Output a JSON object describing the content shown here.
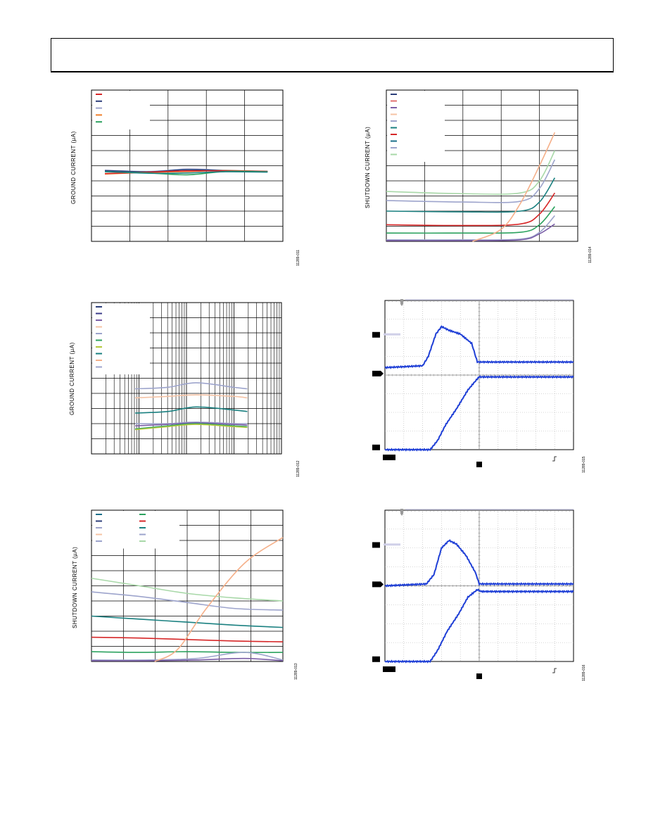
{
  "chart_data": [
    {
      "id": "plot-1",
      "type": "line",
      "ylabel": "GROUND CURRENT (µA)",
      "figure_id": "11289-011",
      "grid": {
        "cols": 5,
        "rows": 10
      },
      "xlim": [
        0,
        1
      ],
      "ylim": [
        0,
        1
      ],
      "legend_colors": [
        "#d62728",
        "#2c3e7a",
        "#9da4cc",
        "#f07f2a",
        "#2ca25f"
      ],
      "series": [
        {
          "color": "#9da4cc",
          "x": [
            0.07,
            0.3,
            0.5,
            0.7,
            0.92
          ],
          "y": [
            0.47,
            0.462,
            0.478,
            0.47,
            0.464
          ]
        },
        {
          "color": "#2c3e7a",
          "x": [
            0.07,
            0.3,
            0.5,
            0.7,
            0.92
          ],
          "y": [
            0.468,
            0.46,
            0.474,
            0.468,
            0.462
          ]
        },
        {
          "color": "#f07f2a",
          "x": [
            0.07,
            0.3,
            0.5,
            0.7,
            0.92
          ],
          "y": [
            0.445,
            0.456,
            0.462,
            0.468,
            0.462
          ]
        },
        {
          "color": "#d62728",
          "x": [
            0.07,
            0.3,
            0.5,
            0.7,
            0.92
          ],
          "y": [
            0.448,
            0.458,
            0.466,
            0.466,
            0.462
          ]
        },
        {
          "color": "#2ca25f",
          "x": [
            0.07,
            0.3,
            0.5,
            0.7,
            0.92
          ],
          "y": [
            0.46,
            0.452,
            0.44,
            0.462,
            0.46
          ]
        },
        {
          "color": "#1a8080",
          "x": [
            0.07,
            0.3,
            0.5,
            0.7,
            0.92
          ],
          "y": [
            0.462,
            0.45,
            0.452,
            0.46,
            0.458
          ]
        }
      ]
    },
    {
      "id": "plot-2",
      "type": "line",
      "ylabel": "SHUTDOWN CURRENT (µA)",
      "figure_id": "11289-014",
      "grid": {
        "cols": 5,
        "rows": 10
      },
      "xlim": [
        0,
        1
      ],
      "ylim": [
        0,
        1
      ],
      "legend_colors": [
        "#2c3e7a",
        "#e07070",
        "#7b5ea7",
        "#f5c3a5",
        "#9da4cc",
        "#1a8080",
        "#d62728",
        "#1a6f8a",
        "#9da4cc",
        "#a8d8a8"
      ],
      "series": [
        {
          "color": "#a8d8a8",
          "x": [
            0,
            0.4,
            0.7,
            0.8,
            0.88
          ],
          "y": [
            0.33,
            0.315,
            0.32,
            0.4,
            0.6
          ]
        },
        {
          "color": "#9da4cc",
          "x": [
            0,
            0.4,
            0.7,
            0.8,
            0.88
          ],
          "y": [
            0.27,
            0.26,
            0.265,
            0.35,
            0.54
          ]
        },
        {
          "color": "#1a8080",
          "x": [
            0,
            0.4,
            0.7,
            0.8,
            0.88
          ],
          "y": [
            0.2,
            0.195,
            0.2,
            0.26,
            0.42
          ]
        },
        {
          "color": "#d62728",
          "x": [
            0,
            0.4,
            0.7,
            0.8,
            0.88
          ],
          "y": [
            0.11,
            0.105,
            0.115,
            0.18,
            0.32
          ]
        },
        {
          "color": "#2ca25f",
          "x": [
            0,
            0.4,
            0.7,
            0.8,
            0.88
          ],
          "y": [
            0.055,
            0.055,
            0.06,
            0.11,
            0.23
          ]
        },
        {
          "color": "#9da4cc",
          "x": [
            0,
            0.4,
            0.7,
            0.8,
            0.88
          ],
          "y": [
            0.01,
            0.01,
            0.015,
            0.06,
            0.17
          ]
        },
        {
          "color": "#7b5ea7",
          "x": [
            0,
            0.4,
            0.7,
            0.8,
            0.88
          ],
          "y": [
            0.005,
            0.005,
            0.01,
            0.05,
            0.115
          ]
        },
        {
          "color": "#f5b08a",
          "x": [
            0.45,
            0.6,
            0.7,
            0.8,
            0.88
          ],
          "y": [
            0.0,
            0.08,
            0.25,
            0.5,
            0.72
          ]
        }
      ]
    },
    {
      "id": "plot-3",
      "type": "line",
      "ylabel": "GROUND CURRENT (µA)",
      "figure_id": "11289-012",
      "log_x": true,
      "grid": {
        "rows": 10,
        "decades": 4
      },
      "xlim": [
        0,
        1
      ],
      "ylim": [
        0,
        1
      ],
      "legend_colors": [
        "#2c3e7a",
        "#3c3c8a",
        "#7b5ea7",
        "#f5c3a5",
        "#9da4cc",
        "#2ca25f",
        "#b4c83c",
        "#1a8080",
        "#f5b08a",
        "#9da4cc"
      ],
      "series": [
        {
          "color": "#9da4cc",
          "x": [
            0.23,
            0.4,
            0.55,
            0.75,
            0.82
          ],
          "y": [
            0.43,
            0.44,
            0.47,
            0.44,
            0.43
          ]
        },
        {
          "color": "#f5c3a5",
          "x": [
            0.23,
            0.4,
            0.55,
            0.75,
            0.82
          ],
          "y": [
            0.37,
            0.38,
            0.39,
            0.38,
            0.37
          ]
        },
        {
          "color": "#1a8080",
          "x": [
            0.23,
            0.4,
            0.55,
            0.75,
            0.82
          ],
          "y": [
            0.27,
            0.28,
            0.31,
            0.29,
            0.28
          ]
        },
        {
          "color": "#9da4cc",
          "x": [
            0.23,
            0.4,
            0.55,
            0.75,
            0.82
          ],
          "y": [
            0.2,
            0.2,
            0.21,
            0.2,
            0.2
          ]
        },
        {
          "color": "#7b5ea7",
          "x": [
            0.23,
            0.4,
            0.55,
            0.75,
            0.82
          ],
          "y": [
            0.185,
            0.195,
            0.205,
            0.195,
            0.19
          ]
        },
        {
          "color": "#2ca25f",
          "x": [
            0.23,
            0.4,
            0.55,
            0.75,
            0.82
          ],
          "y": [
            0.165,
            0.185,
            0.2,
            0.185,
            0.18
          ]
        },
        {
          "color": "#b4c83c",
          "x": [
            0.23,
            0.4,
            0.55,
            0.75,
            0.82
          ],
          "y": [
            0.16,
            0.18,
            0.195,
            0.18,
            0.175
          ]
        }
      ]
    },
    {
      "id": "plot-4",
      "type": "line",
      "ylabel": "SHUTDOWN CURRENT (µA)",
      "figure_id": "11289-013",
      "grid": {
        "cols": 6,
        "rows": 10
      },
      "xlim": [
        0,
        1
      ],
      "ylim": [
        0,
        1
      ],
      "legend_colors_col1": [
        "#1a6f8a",
        "#2c3e7a",
        "#9da4cc",
        "#f5c3a5",
        "#9da4cc"
      ],
      "legend_colors_col2": [
        "#2ca25f",
        "#d62728",
        "#1a8080",
        "#9da4cc",
        "#a8d8a8"
      ],
      "series": [
        {
          "color": "#a8d8a8",
          "x": [
            0,
            0.25,
            0.5,
            0.75,
            1.0
          ],
          "y": [
            0.55,
            0.5,
            0.45,
            0.42,
            0.4
          ]
        },
        {
          "color": "#9da4cc",
          "x": [
            0,
            0.25,
            0.5,
            0.75,
            1.0
          ],
          "y": [
            0.46,
            0.43,
            0.39,
            0.35,
            0.34
          ]
        },
        {
          "color": "#1a8080",
          "x": [
            0,
            0.25,
            0.5,
            0.75,
            1.0
          ],
          "y": [
            0.3,
            0.28,
            0.26,
            0.24,
            0.225
          ]
        },
        {
          "color": "#d62728",
          "x": [
            0,
            0.25,
            0.5,
            0.75,
            1.0
          ],
          "y": [
            0.16,
            0.155,
            0.145,
            0.135,
            0.13
          ]
        },
        {
          "color": "#2ca25f",
          "x": [
            0,
            0.25,
            0.5,
            0.75,
            1.0
          ],
          "y": [
            0.065,
            0.06,
            0.065,
            0.06,
            0.06
          ]
        },
        {
          "color": "#9da4cc",
          "x": [
            0,
            0.3,
            0.55,
            0.8,
            1.0
          ],
          "y": [
            0.01,
            0.01,
            0.02,
            0.06,
            0.01
          ]
        },
        {
          "color": "#7b5ea7",
          "x": [
            0,
            0.3,
            0.55,
            0.8,
            1.0
          ],
          "y": [
            0.005,
            0.005,
            0.01,
            0.02,
            0.005
          ]
        },
        {
          "color": "#f5b08a",
          "x": [
            0.33,
            0.45,
            0.6,
            0.8,
            1.0
          ],
          "y": [
            0.0,
            0.08,
            0.35,
            0.65,
            0.82
          ]
        }
      ]
    },
    {
      "id": "scope-1",
      "type": "line",
      "figure_id": "11289-015",
      "grid": {
        "cols": 10,
        "rows": 8
      },
      "xlim": [
        0,
        10
      ],
      "ylim": [
        0,
        8
      ],
      "trace_color": "#1f3fd6",
      "series": [
        {
          "name": "",
          "x": [
            0,
            2.0,
            2.3,
            2.7,
            3.0,
            3.4,
            4.0,
            4.6,
            4.9,
            10
          ],
          "y": [
            4.4,
            4.5,
            5.0,
            6.2,
            6.6,
            6.4,
            6.2,
            5.7,
            4.7,
            4.7
          ]
        },
        {
          "name": "",
          "x": [
            0,
            2.4,
            2.8,
            3.2,
            3.8,
            4.4,
            4.9,
            5.0,
            10
          ],
          "y": [
            0.0,
            0.0,
            0.5,
            1.3,
            2.2,
            3.2,
            3.8,
            3.9,
            3.9
          ]
        }
      ]
    },
    {
      "id": "scope-2",
      "type": "line",
      "figure_id": "11289-016",
      "grid": {
        "cols": 10,
        "rows": 8
      },
      "xlim": [
        0,
        10
      ],
      "ylim": [
        0,
        8
      ],
      "trace_color": "#1f3fd6",
      "series": [
        {
          "name": "",
          "x": [
            0,
            2.2,
            2.6,
            3.0,
            3.4,
            3.8,
            4.3,
            4.8,
            5.0,
            10
          ],
          "y": [
            4.0,
            4.1,
            4.6,
            6.0,
            6.4,
            6.2,
            5.6,
            4.7,
            4.1,
            4.1
          ]
        },
        {
          "name": "",
          "x": [
            0,
            2.4,
            2.8,
            3.3,
            3.9,
            4.4,
            4.9,
            5.1,
            10
          ],
          "y": [
            0.0,
            0.0,
            0.6,
            1.6,
            2.5,
            3.4,
            3.8,
            3.7,
            3.7
          ]
        }
      ]
    }
  ]
}
